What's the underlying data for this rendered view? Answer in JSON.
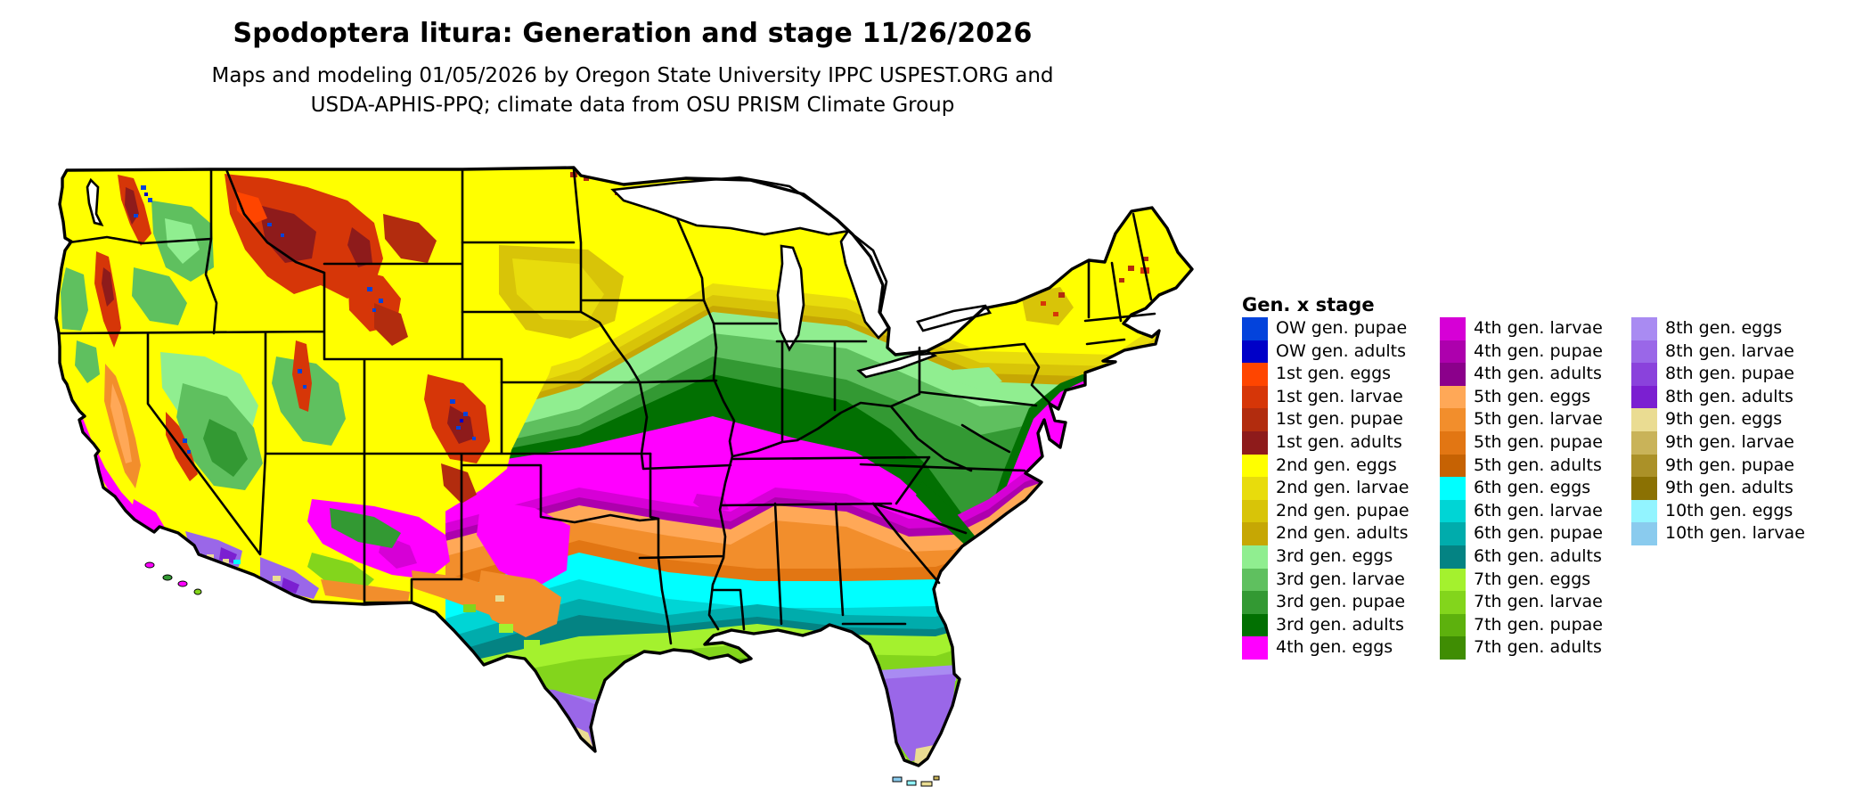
{
  "header": {
    "title": "Spodoptera litura: Generation and stage 11/26/2026",
    "subtitle_line1": "Maps and modeling 01/05/2026 by Oregon State University IPPC USPEST.ORG and",
    "subtitle_line2": "USDA-APHIS-PPQ; climate data from OSU PRISM Climate Group"
  },
  "legend": {
    "title": "Gen. x stage",
    "column_sizes": [
      15,
      15,
      10
    ],
    "column_offsets": [
      0,
      222,
      437
    ],
    "items": [
      {
        "label": "OW gen. pupae",
        "color": "#0343DC"
      },
      {
        "label": "OW gen. adults",
        "color": "#0000C8"
      },
      {
        "label": "1st gen. eggs",
        "color": "#FF4500"
      },
      {
        "label": "1st gen. larvae",
        "color": "#D63608"
      },
      {
        "label": "1st gen. pupae",
        "color": "#B22C0E"
      },
      {
        "label": "1st gen. adults",
        "color": "#8E1B1B"
      },
      {
        "label": "2nd gen. eggs",
        "color": "#FFFF00"
      },
      {
        "label": "2nd gen. larvae",
        "color": "#E8DC0C"
      },
      {
        "label": "2nd gen. pupae",
        "color": "#D8C408"
      },
      {
        "label": "2nd gen. adults",
        "color": "#C6A704"
      },
      {
        "label": "3rd gen. eggs",
        "color": "#90EE90"
      },
      {
        "label": "3rd gen. larvae",
        "color": "#5FC05F"
      },
      {
        "label": "3rd gen. pupae",
        "color": "#339933"
      },
      {
        "label": "3rd gen. adults",
        "color": "#027002"
      },
      {
        "label": "4th gen. eggs",
        "color": "#FF00FF"
      },
      {
        "label": "4th gen. larvae",
        "color": "#D600D6"
      },
      {
        "label": "4th gen. pupae",
        "color": "#AD00AD"
      },
      {
        "label": "4th gen. adults",
        "color": "#8B008B"
      },
      {
        "label": "5th gen. eggs",
        "color": "#FFA857"
      },
      {
        "label": "5th gen. larvae",
        "color": "#F28E2C"
      },
      {
        "label": "5th gen. pupae",
        "color": "#E27613"
      },
      {
        "label": "5th gen. adults",
        "color": "#C66203"
      },
      {
        "label": "6th gen. eggs",
        "color": "#00FFFF"
      },
      {
        "label": "6th gen. larvae",
        "color": "#00D5D5"
      },
      {
        "label": "6th gen. pupae",
        "color": "#00ACAC"
      },
      {
        "label": "6th gen. adults",
        "color": "#048383"
      },
      {
        "label": "7th gen. eggs",
        "color": "#A4F12E"
      },
      {
        "label": "7th gen. larvae",
        "color": "#83D51C"
      },
      {
        "label": "7th gen. pupae",
        "color": "#5DB10D"
      },
      {
        "label": "7th gen. adults",
        "color": "#3F8D03"
      },
      {
        "label": "8th gen. eggs",
        "color": "#A98BF2"
      },
      {
        "label": "8th gen. larvae",
        "color": "#9A67E8"
      },
      {
        "label": "8th gen. pupae",
        "color": "#8A42DC"
      },
      {
        "label": "8th gen. adults",
        "color": "#7B1FD1"
      },
      {
        "label": "9th gen. eggs",
        "color": "#EADC92"
      },
      {
        "label": "9th gen. larvae",
        "color": "#C9B359"
      },
      {
        "label": "9th gen. pupae",
        "color": "#AB9128"
      },
      {
        "label": "9th gen. adults",
        "color": "#8B7103"
      },
      {
        "label": "10th gen. eggs",
        "color": "#92F4FF"
      },
      {
        "label": "10th gen. larvae",
        "color": "#8ACBEE"
      }
    ]
  },
  "map_palette": {
    "ow_pupae": "#0343DC",
    "ow_adults": "#0000C8",
    "g1_eggs": "#FF4500",
    "g1_larvae": "#D63608",
    "g1_pupae": "#B22C0E",
    "g1_adults": "#8E1B1B",
    "g2_eggs": "#FFFF00",
    "g2_larvae": "#E8DC0C",
    "g2_pupae": "#D8C408",
    "g2_adults": "#C6A704",
    "g3_eggs": "#90EE90",
    "g3_larvae": "#5FC05F",
    "g3_pupae": "#339933",
    "g3_adults": "#027002",
    "g4_eggs": "#FF00FF",
    "g4_larvae": "#D600D6",
    "g4_pupae": "#AD00AD",
    "g4_adults": "#8B008B",
    "g5_eggs": "#FFA857",
    "g5_larvae": "#F28E2C",
    "g5_pupae": "#E27613",
    "g5_adults": "#C66203",
    "g6_eggs": "#00FFFF",
    "g6_larvae": "#00D5D5",
    "g6_pupae": "#00ACAC",
    "g6_adults": "#048383",
    "g7_eggs": "#A4F12E",
    "g7_larvae": "#83D51C",
    "g7_pupae": "#5DB10D",
    "g7_adults": "#3F8D03",
    "g8_eggs": "#A98BF2",
    "g8_larvae": "#9A67E8",
    "g8_pupae": "#8A42DC",
    "g8_adults": "#7B1FD1",
    "g9_eggs": "#EADC92",
    "g9_larvae": "#C9B359",
    "g9_pupae": "#AB9128",
    "g9_adults": "#8B7103",
    "g10_eggs": "#92F4FF",
    "g10_larvae": "#8ACBEE",
    "water": "#FFFFFF",
    "border": "#000000"
  }
}
